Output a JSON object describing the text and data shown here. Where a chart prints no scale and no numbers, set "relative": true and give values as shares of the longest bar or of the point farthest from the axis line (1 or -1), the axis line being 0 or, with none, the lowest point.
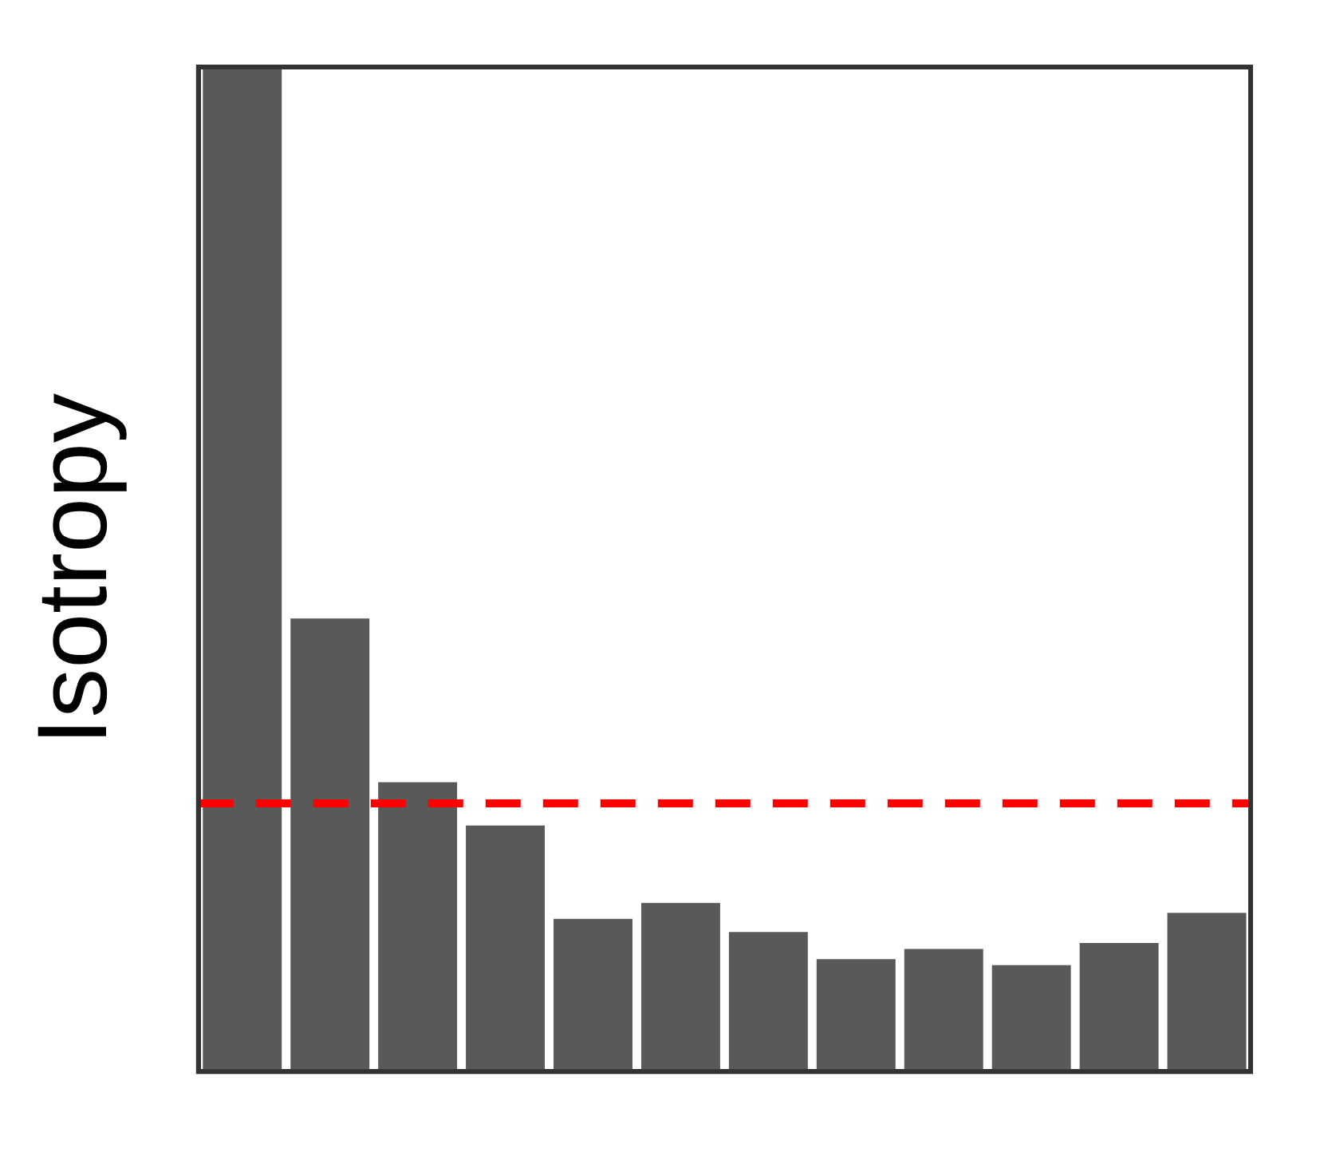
{
  "chart_data": {
    "type": "bar",
    "relative": true,
    "ylabel": "Isotropy",
    "categories": [
      null,
      null,
      null,
      null,
      null,
      null,
      null,
      null,
      null,
      null,
      null,
      null
    ],
    "values": [
      1.0,
      0.451,
      0.288,
      0.245,
      0.152,
      0.168,
      0.139,
      0.112,
      0.122,
      0.106,
      0.128,
      0.158
    ],
    "color": "#595959",
    "ref_lines": [
      {
        "axis": "y",
        "value": 0.267,
        "color": "#ff0000",
        "line_style": "dashed"
      }
    ],
    "grid": false,
    "legend": false
  }
}
